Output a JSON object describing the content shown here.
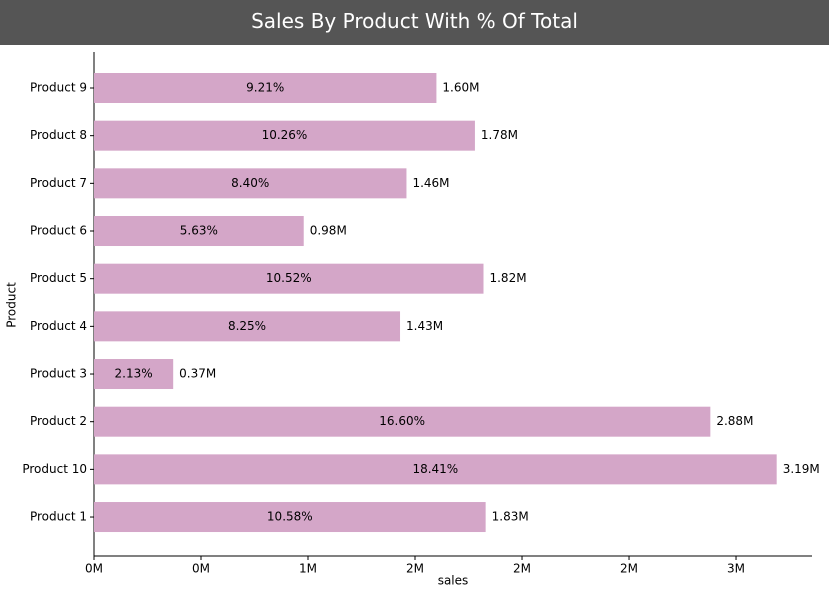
{
  "chart_data": {
    "type": "barh",
    "title": "Sales By Product With % Of Total",
    "x_label": "sales",
    "y_label": "Product",
    "categories": [
      "Product 9",
      "Product 8",
      "Product 7",
      "Product 6",
      "Product 5",
      "Product 4",
      "Product 3",
      "Product 2",
      "Product 10",
      "Product 1"
    ],
    "values": [
      1600000,
      1780000,
      1460000,
      980000,
      1820000,
      1430000,
      370000,
      2880000,
      3190000,
      1830000
    ],
    "value_labels": [
      "1.60M",
      "1.78M",
      "1.46M",
      "0.98M",
      "1.82M",
      "1.43M",
      "0.37M",
      "2.88M",
      "3.19M",
      "1.83M"
    ],
    "share_labels": [
      "9.21%",
      "10.26%",
      "8.40%",
      "5.63%",
      "10.52%",
      "8.25%",
      "2.13%",
      "16.60%",
      "18.41%",
      "10.58%"
    ],
    "color": "#d4a6c8",
    "xlim": [
      0,
      3355000
    ],
    "xticks": [
      {
        "value": 0,
        "label": "0M"
      },
      {
        "value": 500000,
        "label": "0M"
      },
      {
        "value": 1000000,
        "label": "1M"
      },
      {
        "value": 1500000,
        "label": "2M"
      },
      {
        "value": 2000000,
        "label": "2M"
      },
      {
        "value": 2500000,
        "label": "2M"
      },
      {
        "value": 3000000,
        "label": "3M"
      }
    ]
  }
}
